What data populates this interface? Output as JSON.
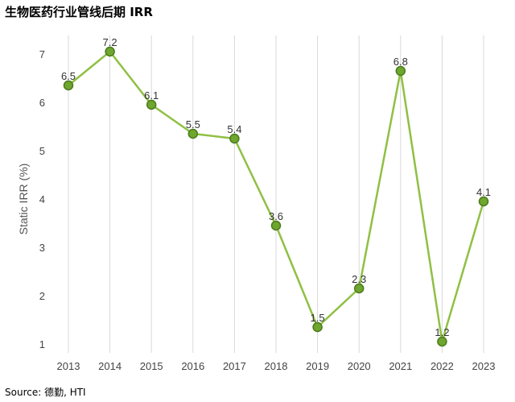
{
  "title": "生物医药行业管线后期 IRR",
  "source": "Source: 德勤, HTI",
  "colors": {
    "line": "#8fc043",
    "marker_fill": "#6ea62e",
    "marker_stroke": "#4a7a1e",
    "grid": "#d9d9d9"
  },
  "chart_data": {
    "type": "line",
    "categories": [
      "2013",
      "2014",
      "2015",
      "2016",
      "2017",
      "2018",
      "2019",
      "2020",
      "2021",
      "2022",
      "2023"
    ],
    "series": [
      {
        "values": [
          6.5,
          7.2,
          6.1,
          5.5,
          5.4,
          3.6,
          1.5,
          2.3,
          6.8,
          1.2,
          4.1
        ],
        "labels": [
          "6.5",
          "7.2",
          "6.1",
          "5.5",
          "5.4",
          "3.6",
          "1.5",
          "2.3",
          "6.8",
          "1.2",
          "4.1"
        ],
        "plotted": [
          6.35,
          7.05,
          5.95,
          5.35,
          5.25,
          3.45,
          1.35,
          2.15,
          6.65,
          1.05,
          3.95
        ]
      }
    ],
    "ylabel": "Static IRR (%)",
    "ylim": [
      0.8,
      7.3
    ],
    "yticks": [
      1,
      2,
      3,
      4,
      5,
      6,
      7
    ],
    "grid": "vertical"
  }
}
